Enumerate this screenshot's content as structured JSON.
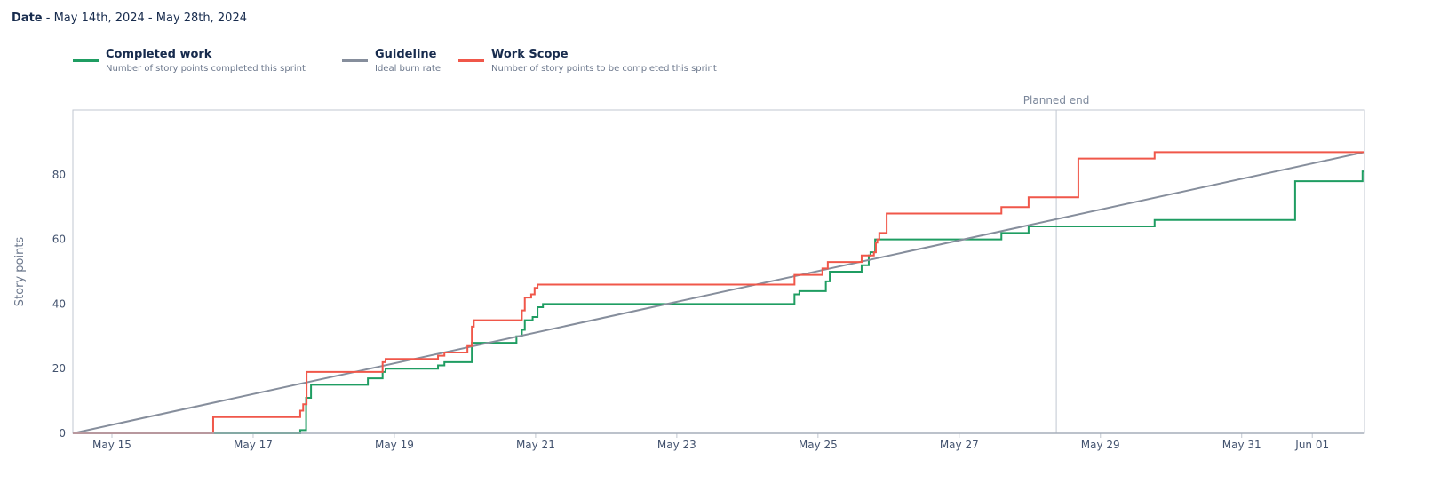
{
  "header": {
    "date_label": "Date",
    "date_range": " - May 14th, 2024 - May 28th, 2024"
  },
  "legend": [
    {
      "title": "Completed work",
      "subtitle": "Number of story points completed this sprint",
      "color": "#1f9d62"
    },
    {
      "title": "Guideline",
      "subtitle": "Ideal burn rate",
      "color": "#868e9c"
    },
    {
      "title": "Work Scope",
      "subtitle": "Number of story points to be completed this sprint",
      "color": "#f0574a"
    }
  ],
  "chart_data": {
    "type": "line",
    "ylabel": "Story points",
    "xlim": [
      "2024-05-14T10:43",
      "2024-06-01T17:45"
    ],
    "ylim": [
      0,
      100
    ],
    "yticks": [
      0,
      20,
      40,
      60,
      80
    ],
    "xticks": [
      {
        "date": "2024-05-15T00:00",
        "label": "May 15"
      },
      {
        "date": "2024-05-17T00:00",
        "label": "May 17"
      },
      {
        "date": "2024-05-19T00:00",
        "label": "May 19"
      },
      {
        "date": "2024-05-21T00:00",
        "label": "May 21"
      },
      {
        "date": "2024-05-23T00:00",
        "label": "May 23"
      },
      {
        "date": "2024-05-25T00:00",
        "label": "May 25"
      },
      {
        "date": "2024-05-27T00:00",
        "label": "May 27"
      },
      {
        "date": "2024-05-29T00:00",
        "label": "May 29"
      },
      {
        "date": "2024-05-31T00:00",
        "label": "May 31"
      },
      {
        "date": "2024-06-01T00:00",
        "label": "Jun 01"
      }
    ],
    "annotation": {
      "date": "2024-05-28T09:00",
      "label": "Planned end"
    },
    "series": [
      {
        "name": "Completed work",
        "step": true,
        "color": "#1f9d62",
        "points": [
          [
            "2024-05-14T10:43",
            0
          ],
          [
            "2024-05-17T16:00",
            1
          ],
          [
            "2024-05-17T18:00",
            11
          ],
          [
            "2024-05-17T19:40",
            15
          ],
          [
            "2024-05-18T15:00",
            17
          ],
          [
            "2024-05-18T20:00",
            19
          ],
          [
            "2024-05-18T21:00",
            20
          ],
          [
            "2024-05-19T14:50",
            21
          ],
          [
            "2024-05-19T17:00",
            22
          ],
          [
            "2024-05-20T02:20",
            28
          ],
          [
            "2024-05-20T17:30",
            30
          ],
          [
            "2024-05-20T19:20",
            32
          ],
          [
            "2024-05-20T20:20",
            35
          ],
          [
            "2024-05-20T23:00",
            36
          ],
          [
            "2024-05-21T00:40",
            39
          ],
          [
            "2024-05-21T02:30",
            40
          ],
          [
            "2024-05-24T16:00",
            43
          ],
          [
            "2024-05-24T17:40",
            44
          ],
          [
            "2024-05-25T02:40",
            47
          ],
          [
            "2024-05-25T04:00",
            50
          ],
          [
            "2024-05-25T14:50",
            52
          ],
          [
            "2024-05-25T17:15",
            55
          ],
          [
            "2024-05-25T17:50",
            56
          ],
          [
            "2024-05-25T19:25",
            60
          ],
          [
            "2024-05-27T14:20",
            62
          ],
          [
            "2024-05-27T23:35",
            64
          ],
          [
            "2024-05-29T18:25",
            66
          ],
          [
            "2024-05-31T18:10",
            78
          ],
          [
            "2024-06-01T17:05",
            81
          ],
          [
            "2024-06-01T17:45",
            81
          ]
        ]
      },
      {
        "name": "Guideline",
        "step": false,
        "color": "#868e9c",
        "points": [
          [
            "2024-05-14T10:43",
            0
          ],
          [
            "2024-06-01T17:45",
            87
          ]
        ]
      },
      {
        "name": "Work Scope",
        "step": true,
        "color": "#f0574a",
        "points": [
          [
            "2024-05-14T10:43",
            0
          ],
          [
            "2024-05-16T10:25",
            5
          ],
          [
            "2024-05-17T16:00",
            7
          ],
          [
            "2024-05-17T17:00",
            9
          ],
          [
            "2024-05-17T18:10",
            19
          ],
          [
            "2024-05-18T20:00",
            22
          ],
          [
            "2024-05-18T21:00",
            23
          ],
          [
            "2024-05-19T14:50",
            24
          ],
          [
            "2024-05-19T17:00",
            25
          ],
          [
            "2024-05-20T00:50",
            27
          ],
          [
            "2024-05-20T02:20",
            33
          ],
          [
            "2024-05-20T03:00",
            35
          ],
          [
            "2024-05-20T19:20",
            38
          ],
          [
            "2024-05-20T20:20",
            42
          ],
          [
            "2024-05-20T22:30",
            43
          ],
          [
            "2024-05-20T23:40",
            45
          ],
          [
            "2024-05-21T00:40",
            46
          ],
          [
            "2024-05-24T16:00",
            49
          ],
          [
            "2024-05-25T01:30",
            51
          ],
          [
            "2024-05-25T03:20",
            53
          ],
          [
            "2024-05-25T14:50",
            55
          ],
          [
            "2024-05-25T19:00",
            56
          ],
          [
            "2024-05-25T19:40",
            59
          ],
          [
            "2024-05-25T20:10",
            60
          ],
          [
            "2024-05-25T20:50",
            62
          ],
          [
            "2024-05-25T23:20",
            68
          ],
          [
            "2024-05-27T14:20",
            70
          ],
          [
            "2024-05-27T23:35",
            73
          ],
          [
            "2024-05-28T16:30",
            85
          ],
          [
            "2024-05-29T18:25",
            87
          ],
          [
            "2024-06-01T17:45",
            87
          ]
        ]
      }
    ]
  }
}
